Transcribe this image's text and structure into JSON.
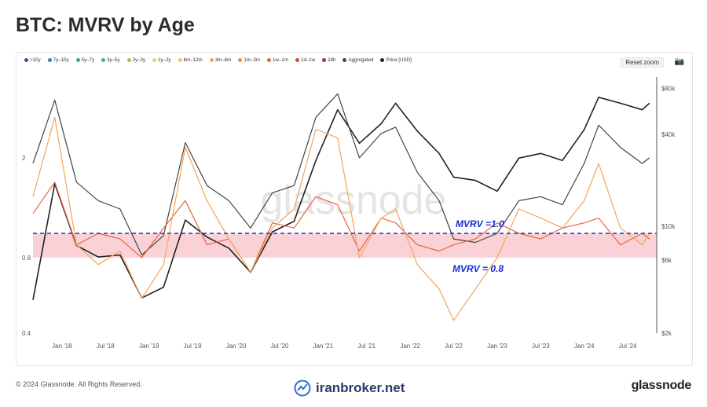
{
  "header": {
    "title": "BTC: MVRV by Age"
  },
  "toolbar": {
    "reset_zoom": "Reset zoom",
    "camera_icon": "camera-icon"
  },
  "legend": [
    {
      "label": ">10y",
      "color": "#5b3f8a"
    },
    {
      "label": "7y–10y",
      "color": "#3f7fa8"
    },
    {
      "label": "5y–7y",
      "color": "#4a9aa3"
    },
    {
      "label": "3y–5y",
      "color": "#59a87a"
    },
    {
      "label": "2y–3y",
      "color": "#a0c25a"
    },
    {
      "label": "1y–2y",
      "color": "#e6d35a"
    },
    {
      "label": "6m–12m",
      "color": "#f2c35c"
    },
    {
      "label": "3m–6m",
      "color": "#f3a55a"
    },
    {
      "label": "1m–3m",
      "color": "#ee8a45"
    },
    {
      "label": "1w–1m",
      "color": "#e5653c"
    },
    {
      "label": "1d–1w",
      "color": "#d94a3b"
    },
    {
      "label": "24h",
      "color": "#b5283c"
    },
    {
      "label": "Aggregated",
      "color": "#444444"
    },
    {
      "label": "Price [USD]",
      "color": "#222222"
    }
  ],
  "chart_data": {
    "type": "line",
    "title": "BTC: MVRV by Age",
    "x_ticks": [
      "Jan '18",
      "Jul '18",
      "Jan '19",
      "Jul '19",
      "Jan '20",
      "Jul '20",
      "Jan '21",
      "Jul '21",
      "Jan '22",
      "Jul '22",
      "Jan '23",
      "Jul '23",
      "Jan '24",
      "Jul '24"
    ],
    "y_left_scale": "log",
    "y_left_ticks": [
      "2",
      "0.8",
      "0.4"
    ],
    "y_right_scale": "log",
    "y_right_ticks": [
      "$80k",
      "$40k",
      "$10k",
      "$6k",
      "$2k"
    ],
    "annotations": [
      {
        "text": "MVRV =1.0",
        "value": 1.0
      },
      {
        "text": "MVRV = 0.8",
        "value": 0.8
      }
    ],
    "band": [
      0.8,
      1.0
    ],
    "band_color": "#f9c9cf",
    "threshold_color": "#1a2bd6",
    "watermark": "glassnode",
    "series": [
      {
        "name": "Price [USD]",
        "axis": "right",
        "color": "#222222",
        "x": [
          "2017-09",
          "2017-12",
          "2018-03",
          "2018-06",
          "2018-09",
          "2018-12",
          "2019-03",
          "2019-06",
          "2019-09",
          "2019-12",
          "2020-03",
          "2020-06",
          "2020-09",
          "2020-12",
          "2021-03",
          "2021-06",
          "2021-09",
          "2021-11",
          "2022-02",
          "2022-05",
          "2022-07",
          "2022-10",
          "2023-01",
          "2023-04",
          "2023-07",
          "2023-10",
          "2024-01",
          "2024-03",
          "2024-06",
          "2024-09",
          "2024-10"
        ],
        "y": [
          3300,
          19000,
          7500,
          6300,
          6500,
          3400,
          4000,
          11000,
          8500,
          7200,
          5000,
          9200,
          10800,
          27000,
          58000,
          35000,
          47000,
          64000,
          42000,
          30000,
          21000,
          20000,
          17000,
          28000,
          30000,
          27000,
          43000,
          70000,
          64000,
          58000,
          64000
        ]
      },
      {
        "name": "Aggregated",
        "axis": "left",
        "color": "#444444",
        "x": [
          "2017-09",
          "2017-12",
          "2018-03",
          "2018-06",
          "2018-09",
          "2018-12",
          "2019-03",
          "2019-06",
          "2019-09",
          "2019-12",
          "2020-03",
          "2020-06",
          "2020-09",
          "2020-12",
          "2021-03",
          "2021-06",
          "2021-09",
          "2021-11",
          "2022-02",
          "2022-05",
          "2022-07",
          "2022-10",
          "2023-01",
          "2023-04",
          "2023-07",
          "2023-10",
          "2024-01",
          "2024-03",
          "2024-06",
          "2024-09",
          "2024-10"
        ],
        "y": [
          1.9,
          3.4,
          1.6,
          1.35,
          1.25,
          0.82,
          0.98,
          2.3,
          1.55,
          1.35,
          1.05,
          1.45,
          1.55,
          2.9,
          3.6,
          2.0,
          2.5,
          2.65,
          1.75,
          1.35,
          0.95,
          0.92,
          1.0,
          1.35,
          1.4,
          1.3,
          1.9,
          2.7,
          2.2,
          1.9,
          2.0
        ]
      },
      {
        "name": "1w–1m",
        "axis": "left",
        "color": "#e5653c",
        "x": [
          "2017-09",
          "2017-12",
          "2018-03",
          "2018-06",
          "2018-09",
          "2018-12",
          "2019-03",
          "2019-06",
          "2019-09",
          "2019-12",
          "2020-03",
          "2020-06",
          "2020-09",
          "2020-12",
          "2021-03",
          "2021-06",
          "2021-09",
          "2021-11",
          "2022-02",
          "2022-05",
          "2022-07",
          "2022-10",
          "2023-01",
          "2023-04",
          "2023-07",
          "2023-10",
          "2024-01",
          "2024-03",
          "2024-06",
          "2024-09",
          "2024-10"
        ],
        "y": [
          1.2,
          1.6,
          0.9,
          1.0,
          0.95,
          0.8,
          1.05,
          1.35,
          0.9,
          0.95,
          0.7,
          1.1,
          1.05,
          1.4,
          1.3,
          0.85,
          1.15,
          1.1,
          0.9,
          0.85,
          0.9,
          0.95,
          1.1,
          1.0,
          0.95,
          1.05,
          1.1,
          1.15,
          0.9,
          1.0,
          0.95
        ]
      },
      {
        "name": "3m–6m",
        "axis": "left",
        "color": "#f3a55a",
        "x": [
          "2017-09",
          "2017-12",
          "2018-03",
          "2018-06",
          "2018-09",
          "2018-12",
          "2019-03",
          "2019-06",
          "2019-09",
          "2019-12",
          "2020-03",
          "2020-06",
          "2020-09",
          "2020-12",
          "2021-03",
          "2021-06",
          "2021-09",
          "2021-11",
          "2022-02",
          "2022-05",
          "2022-07",
          "2022-10",
          "2023-01",
          "2023-04",
          "2023-07",
          "2023-10",
          "2024-01",
          "2024-03",
          "2024-06",
          "2024-09",
          "2024-10"
        ],
        "y": [
          1.4,
          2.9,
          0.9,
          0.75,
          0.85,
          0.55,
          0.75,
          2.2,
          1.35,
          0.95,
          0.7,
          1.05,
          1.25,
          2.6,
          2.4,
          0.8,
          1.15,
          1.25,
          0.75,
          0.6,
          0.45,
          0.6,
          0.8,
          1.25,
          1.15,
          1.05,
          1.35,
          1.9,
          1.05,
          0.9,
          1.0
        ]
      }
    ]
  },
  "footer": {
    "copyright": "© 2024 Glassnode. All Rights Reserved.",
    "brand": "iranbroker.net",
    "logo": "glassnode"
  }
}
